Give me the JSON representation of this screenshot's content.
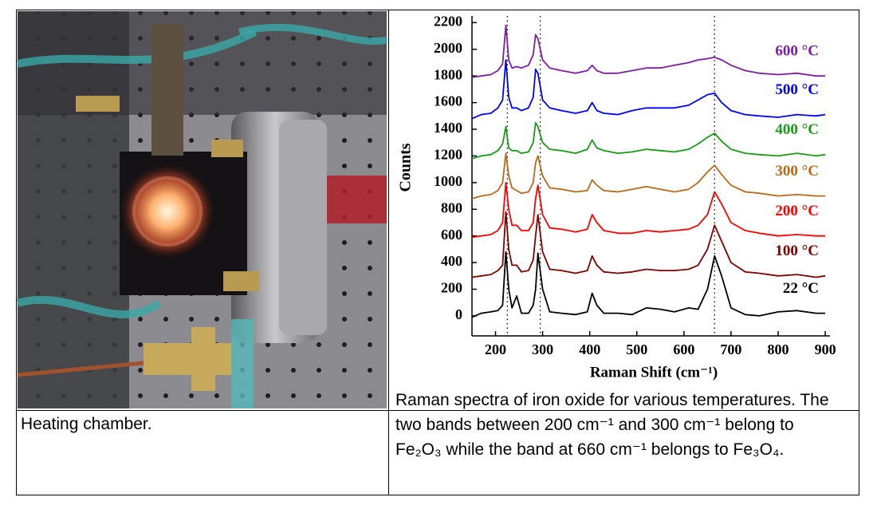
{
  "table": {
    "left_caption": "Heating chamber.",
    "right_caption": "Raman spectra of iron oxide for various temperatures. The two bands between 200 cm⁻¹ and 300 cm⁻¹ belong to Fe₂O₃ while the band at 660 cm⁻¹ belongs to Fe₃O₄."
  },
  "chart_data": {
    "type": "line",
    "xlabel": "Raman Shift (cm⁻¹)",
    "ylabel": "Counts",
    "xlim": [
      150,
      910
    ],
    "ylim": [
      -150,
      2250
    ],
    "xticks": [
      200,
      300,
      400,
      500,
      600,
      700,
      800,
      900
    ],
    "yticks": [
      0,
      200,
      400,
      600,
      800,
      1000,
      1200,
      1400,
      1600,
      1800,
      2000,
      2200
    ],
    "reference_lines": [
      225,
      295,
      665
    ],
    "x": [
      150,
      170,
      190,
      205,
      215,
      222,
      228,
      235,
      245,
      255,
      270,
      280,
      285,
      290,
      300,
      315,
      340,
      370,
      395,
      405,
      415,
      430,
      460,
      490,
      520,
      550,
      580,
      610,
      630,
      650,
      665,
      680,
      700,
      730,
      760,
      800,
      840,
      880,
      900
    ],
    "series": [
      {
        "name": "600 °C",
        "color": "#7b1fa2",
        "values": [
          1790,
          1800,
          1810,
          1840,
          1890,
          2180,
          1920,
          1860,
          1870,
          1860,
          1880,
          1960,
          2110,
          2080,
          1920,
          1860,
          1840,
          1820,
          1840,
          1880,
          1840,
          1820,
          1820,
          1840,
          1860,
          1860,
          1880,
          1900,
          1920,
          1930,
          1940,
          1920,
          1880,
          1840,
          1820,
          1810,
          1820,
          1800,
          1800
        ]
      },
      {
        "name": "500 °C",
        "color": "#0000ff",
        "values": [
          1480,
          1510,
          1520,
          1560,
          1620,
          1920,
          1640,
          1560,
          1560,
          1540,
          1560,
          1640,
          1850,
          1820,
          1620,
          1560,
          1540,
          1520,
          1540,
          1600,
          1540,
          1520,
          1510,
          1540,
          1560,
          1560,
          1560,
          1580,
          1620,
          1660,
          1670,
          1600,
          1540,
          1510,
          1500,
          1490,
          1510,
          1500,
          1510
        ]
      },
      {
        "name": "400 °C",
        "color": "#1a9a1a",
        "values": [
          1180,
          1200,
          1210,
          1240,
          1290,
          1420,
          1260,
          1240,
          1240,
          1220,
          1230,
          1300,
          1450,
          1420,
          1300,
          1250,
          1240,
          1220,
          1250,
          1320,
          1260,
          1240,
          1220,
          1230,
          1250,
          1240,
          1230,
          1250,
          1290,
          1340,
          1370,
          1310,
          1250,
          1220,
          1210,
          1200,
          1220,
          1200,
          1210
        ]
      },
      {
        "name": "300 °C",
        "color": "#b8691c",
        "values": [
          880,
          900,
          910,
          940,
          1000,
          1220,
          1050,
          960,
          940,
          920,
          930,
          1000,
          1150,
          1200,
          1050,
          960,
          950,
          930,
          940,
          1020,
          980,
          940,
          930,
          950,
          970,
          950,
          930,
          950,
          1000,
          1080,
          1130,
          1060,
          980,
          930,
          920,
          900,
          910,
          900,
          900
        ]
      },
      {
        "name": "200 °C",
        "color": "#ff0000",
        "values": [
          590,
          600,
          610,
          640,
          700,
          1000,
          800,
          680,
          680,
          640,
          640,
          700,
          880,
          980,
          760,
          660,
          650,
          630,
          650,
          760,
          700,
          640,
          620,
          620,
          640,
          630,
          640,
          650,
          680,
          760,
          930,
          840,
          700,
          640,
          620,
          600,
          610,
          600,
          600
        ]
      },
      {
        "name": "100 °C",
        "color": "#800000",
        "values": [
          290,
          300,
          310,
          340,
          380,
          780,
          500,
          380,
          380,
          330,
          340,
          420,
          600,
          760,
          480,
          350,
          340,
          320,
          340,
          450,
          380,
          330,
          320,
          330,
          350,
          340,
          340,
          350,
          380,
          500,
          680,
          560,
          400,
          330,
          320,
          300,
          310,
          290,
          300
        ]
      },
      {
        "name": "22 °C",
        "color": "#000000",
        "values": [
          -10,
          20,
          30,
          40,
          80,
          480,
          200,
          60,
          150,
          20,
          20,
          80,
          200,
          470,
          200,
          30,
          20,
          10,
          30,
          170,
          80,
          20,
          20,
          10,
          60,
          50,
          30,
          60,
          50,
          200,
          450,
          300,
          60,
          10,
          0,
          30,
          40,
          20,
          20
        ]
      }
    ]
  }
}
